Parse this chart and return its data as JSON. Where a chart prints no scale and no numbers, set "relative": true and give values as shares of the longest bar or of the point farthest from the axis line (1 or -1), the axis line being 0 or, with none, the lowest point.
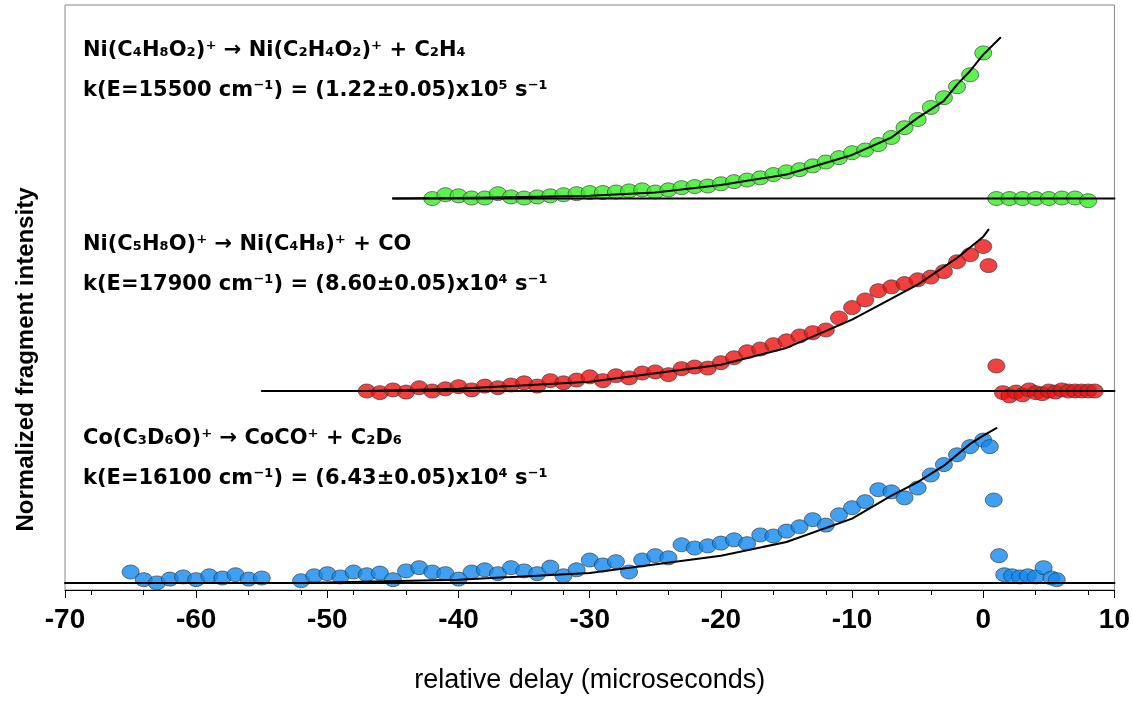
{
  "chart_data": {
    "type": "scatter",
    "relative": true,
    "marker": "circle",
    "xlabel": "relative delay (microseconds)",
    "ylabel": "Normalized fragment intensity",
    "xlim": [
      -70,
      10
    ],
    "xticks": [
      -70,
      -60,
      -50,
      -40,
      -30,
      -20,
      -10,
      0,
      10
    ],
    "annotations": [
      "Ni(C₄H₈O₂)⁺ → Ni(C₂H₄O₂)⁺ + C₂H₄",
      "k(E=15500 cm⁻¹) = (1.22±0.05)x10⁵ s⁻¹",
      "Ni(C₅H₈O)⁺ → Ni(C₄H₈)⁺ + CO",
      "k(E=17900 cm⁻¹) = (8.60±0.05)x10⁴ s⁻¹",
      "Co(C₃D₆O)⁺ → CoCO⁺ + C₂D₆",
      "k(E=16100 cm⁻¹) = (6.43±0.05)x10⁴ s⁻¹"
    ],
    "series": [
      {
        "type": "line",
        "marker": "none",
        "color": "#000000",
        "x": [
          -45,
          10
        ],
        "values": [
          0.705,
          0.705
        ]
      },
      {
        "type": "line",
        "marker": "none",
        "color": "#000000",
        "x": [
          -55,
          10
        ],
        "values": [
          0.352,
          0.352
        ]
      },
      {
        "type": "line",
        "marker": "none",
        "color": "#000000",
        "x": [
          -70,
          10
        ],
        "values": [
          0,
          0
        ]
      },
      {
        "color": "#33ee22",
        "x": [
          -42,
          -41,
          -40,
          -39,
          -38,
          -37,
          -36,
          -35,
          -34,
          -33,
          -32,
          -31,
          -30,
          -29,
          -28,
          -27,
          -26,
          -25,
          -24,
          -23,
          -22,
          -21,
          -20,
          -19,
          -18,
          -17,
          -16,
          -15,
          -14,
          -13,
          -12,
          -11,
          -10,
          -9,
          -8,
          -7,
          -6,
          -5,
          -4,
          -3,
          -2,
          -1,
          0,
          1,
          2,
          3,
          4,
          5,
          6,
          7,
          8
        ],
        "values": [
          0.705,
          0.712,
          0.71,
          0.706,
          0.706,
          0.714,
          0.708,
          0.706,
          0.708,
          0.71,
          0.712,
          0.714,
          0.716,
          0.716,
          0.717,
          0.719,
          0.721,
          0.717,
          0.721,
          0.725,
          0.727,
          0.728,
          0.732,
          0.736,
          0.739,
          0.743,
          0.749,
          0.754,
          0.758,
          0.765,
          0.772,
          0.78,
          0.789,
          0.794,
          0.804,
          0.817,
          0.835,
          0.85,
          0.872,
          0.89,
          0.91,
          0.932,
          0.972,
          0.705,
          0.705,
          0.705,
          0.705,
          0.705,
          0.706,
          0.706,
          0.701
        ]
      },
      {
        "color": "#ee1111",
        "x": [
          -47,
          -46,
          -45,
          -44,
          -43,
          -42,
          -41,
          -40,
          -39,
          -38,
          -37,
          -36,
          -35,
          -34,
          -33,
          -32,
          -31,
          -30,
          -29,
          -28,
          -27,
          -26,
          -25,
          -24,
          -23,
          -22,
          -21,
          -20,
          -19,
          -18,
          -17,
          -16,
          -15,
          -14,
          -13,
          -12,
          -11,
          -10,
          -9,
          -8,
          -7,
          -6,
          -5,
          -4,
          -3,
          -2,
          -1,
          0,
          0.4,
          1,
          1.5,
          2,
          2.5,
          3,
          3.5,
          4,
          4.5,
          5,
          5.5,
          6,
          6.5,
          7,
          7.5,
          8,
          8.5
        ],
        "values": [
          0.352,
          0.349,
          0.354,
          0.35,
          0.358,
          0.352,
          0.356,
          0.36,
          0.354,
          0.361,
          0.358,
          0.363,
          0.367,
          0.361,
          0.371,
          0.367,
          0.372,
          0.378,
          0.371,
          0.38,
          0.376,
          0.385,
          0.387,
          0.382,
          0.393,
          0.396,
          0.394,
          0.404,
          0.413,
          0.424,
          0.429,
          0.437,
          0.444,
          0.453,
          0.459,
          0.464,
          0.486,
          0.505,
          0.519,
          0.536,
          0.543,
          0.549,
          0.556,
          0.561,
          0.571,
          0.589,
          0.602,
          0.617,
          0.582,
          0.398,
          0.349,
          0.343,
          0.35,
          0.345,
          0.354,
          0.349,
          0.347,
          0.352,
          0.35,
          0.354,
          0.352,
          0.352,
          0.352,
          0.352,
          0.352
        ]
      },
      {
        "color": "#1188ee",
        "x": [
          -65,
          -64,
          -63,
          -62,
          -61,
          -60,
          -59,
          -58,
          -57,
          -56,
          -55,
          -52,
          -51,
          -50,
          -49,
          -48,
          -47,
          -46,
          -45,
          -44,
          -43,
          -42,
          -41,
          -40,
          -39,
          -38,
          -37,
          -36,
          -35,
          -34,
          -33,
          -32,
          -31,
          -30,
          -29,
          -28,
          -27,
          -26,
          -25,
          -24,
          -23,
          -22,
          -21,
          -20,
          -19,
          -18,
          -17,
          -16,
          -15,
          -14,
          -13,
          -12,
          -11,
          -10,
          -9,
          -8,
          -7,
          -6,
          -5,
          -4,
          -3,
          -2,
          -1,
          0,
          0.5,
          0.8,
          1.2,
          1.6,
          2.2,
          2.8,
          3.4,
          4,
          4.6,
          5.2,
          5.6
        ],
        "values": [
          0.02,
          0.006,
          0,
          0.007,
          0.011,
          0.006,
          0.013,
          0.009,
          0.015,
          0.007,
          0.009,
          0.004,
          0.013,
          0.017,
          0.011,
          0.02,
          0.015,
          0.018,
          0.006,
          0.022,
          0.028,
          0.02,
          0.017,
          0.007,
          0.02,
          0.024,
          0.017,
          0.028,
          0.022,
          0.017,
          0.029,
          0.013,
          0.024,
          0.042,
          0.033,
          0.039,
          0.02,
          0.042,
          0.05,
          0.046,
          0.07,
          0.064,
          0.068,
          0.073,
          0.079,
          0.072,
          0.088,
          0.086,
          0.095,
          0.103,
          0.116,
          0.106,
          0.125,
          0.138,
          0.149,
          0.171,
          0.167,
          0.156,
          0.174,
          0.198,
          0.217,
          0.235,
          0.25,
          0.262,
          0.25,
          0.152,
          0.05,
          0.015,
          0.013,
          0.011,
          0.013,
          0.011,
          0.028,
          0.009,
          0.006
        ]
      },
      {
        "type": "line",
        "marker": "none",
        "color": "#000000",
        "x": [
          -45,
          -40,
          -35,
          -30,
          -25,
          -20,
          -15,
          -10,
          -7,
          -5,
          -3,
          -2,
          -1,
          0,
          1.3
        ],
        "values": [
          0.705,
          0.706,
          0.708,
          0.71,
          0.716,
          0.73,
          0.749,
          0.785,
          0.817,
          0.853,
          0.884,
          0.914,
          0.939,
          0.969,
          1
        ]
      },
      {
        "type": "line",
        "marker": "none",
        "color": "#000000",
        "x": [
          -47,
          -40,
          -30,
          -20,
          -15,
          -10,
          -5,
          -2,
          0,
          0.4
        ],
        "values": [
          0.352,
          0.356,
          0.369,
          0.4,
          0.431,
          0.483,
          0.547,
          0.596,
          0.635,
          0.648
        ]
      },
      {
        "type": "line",
        "marker": "none",
        "color": "#000000",
        "x": [
          -52,
          -40,
          -30,
          -20,
          -15,
          -10,
          -7,
          -5,
          -3,
          -1,
          0,
          1
        ],
        "values": [
          0,
          0.006,
          0.018,
          0.05,
          0.075,
          0.118,
          0.16,
          0.185,
          0.215,
          0.255,
          0.27,
          0.284
        ]
      }
    ]
  }
}
